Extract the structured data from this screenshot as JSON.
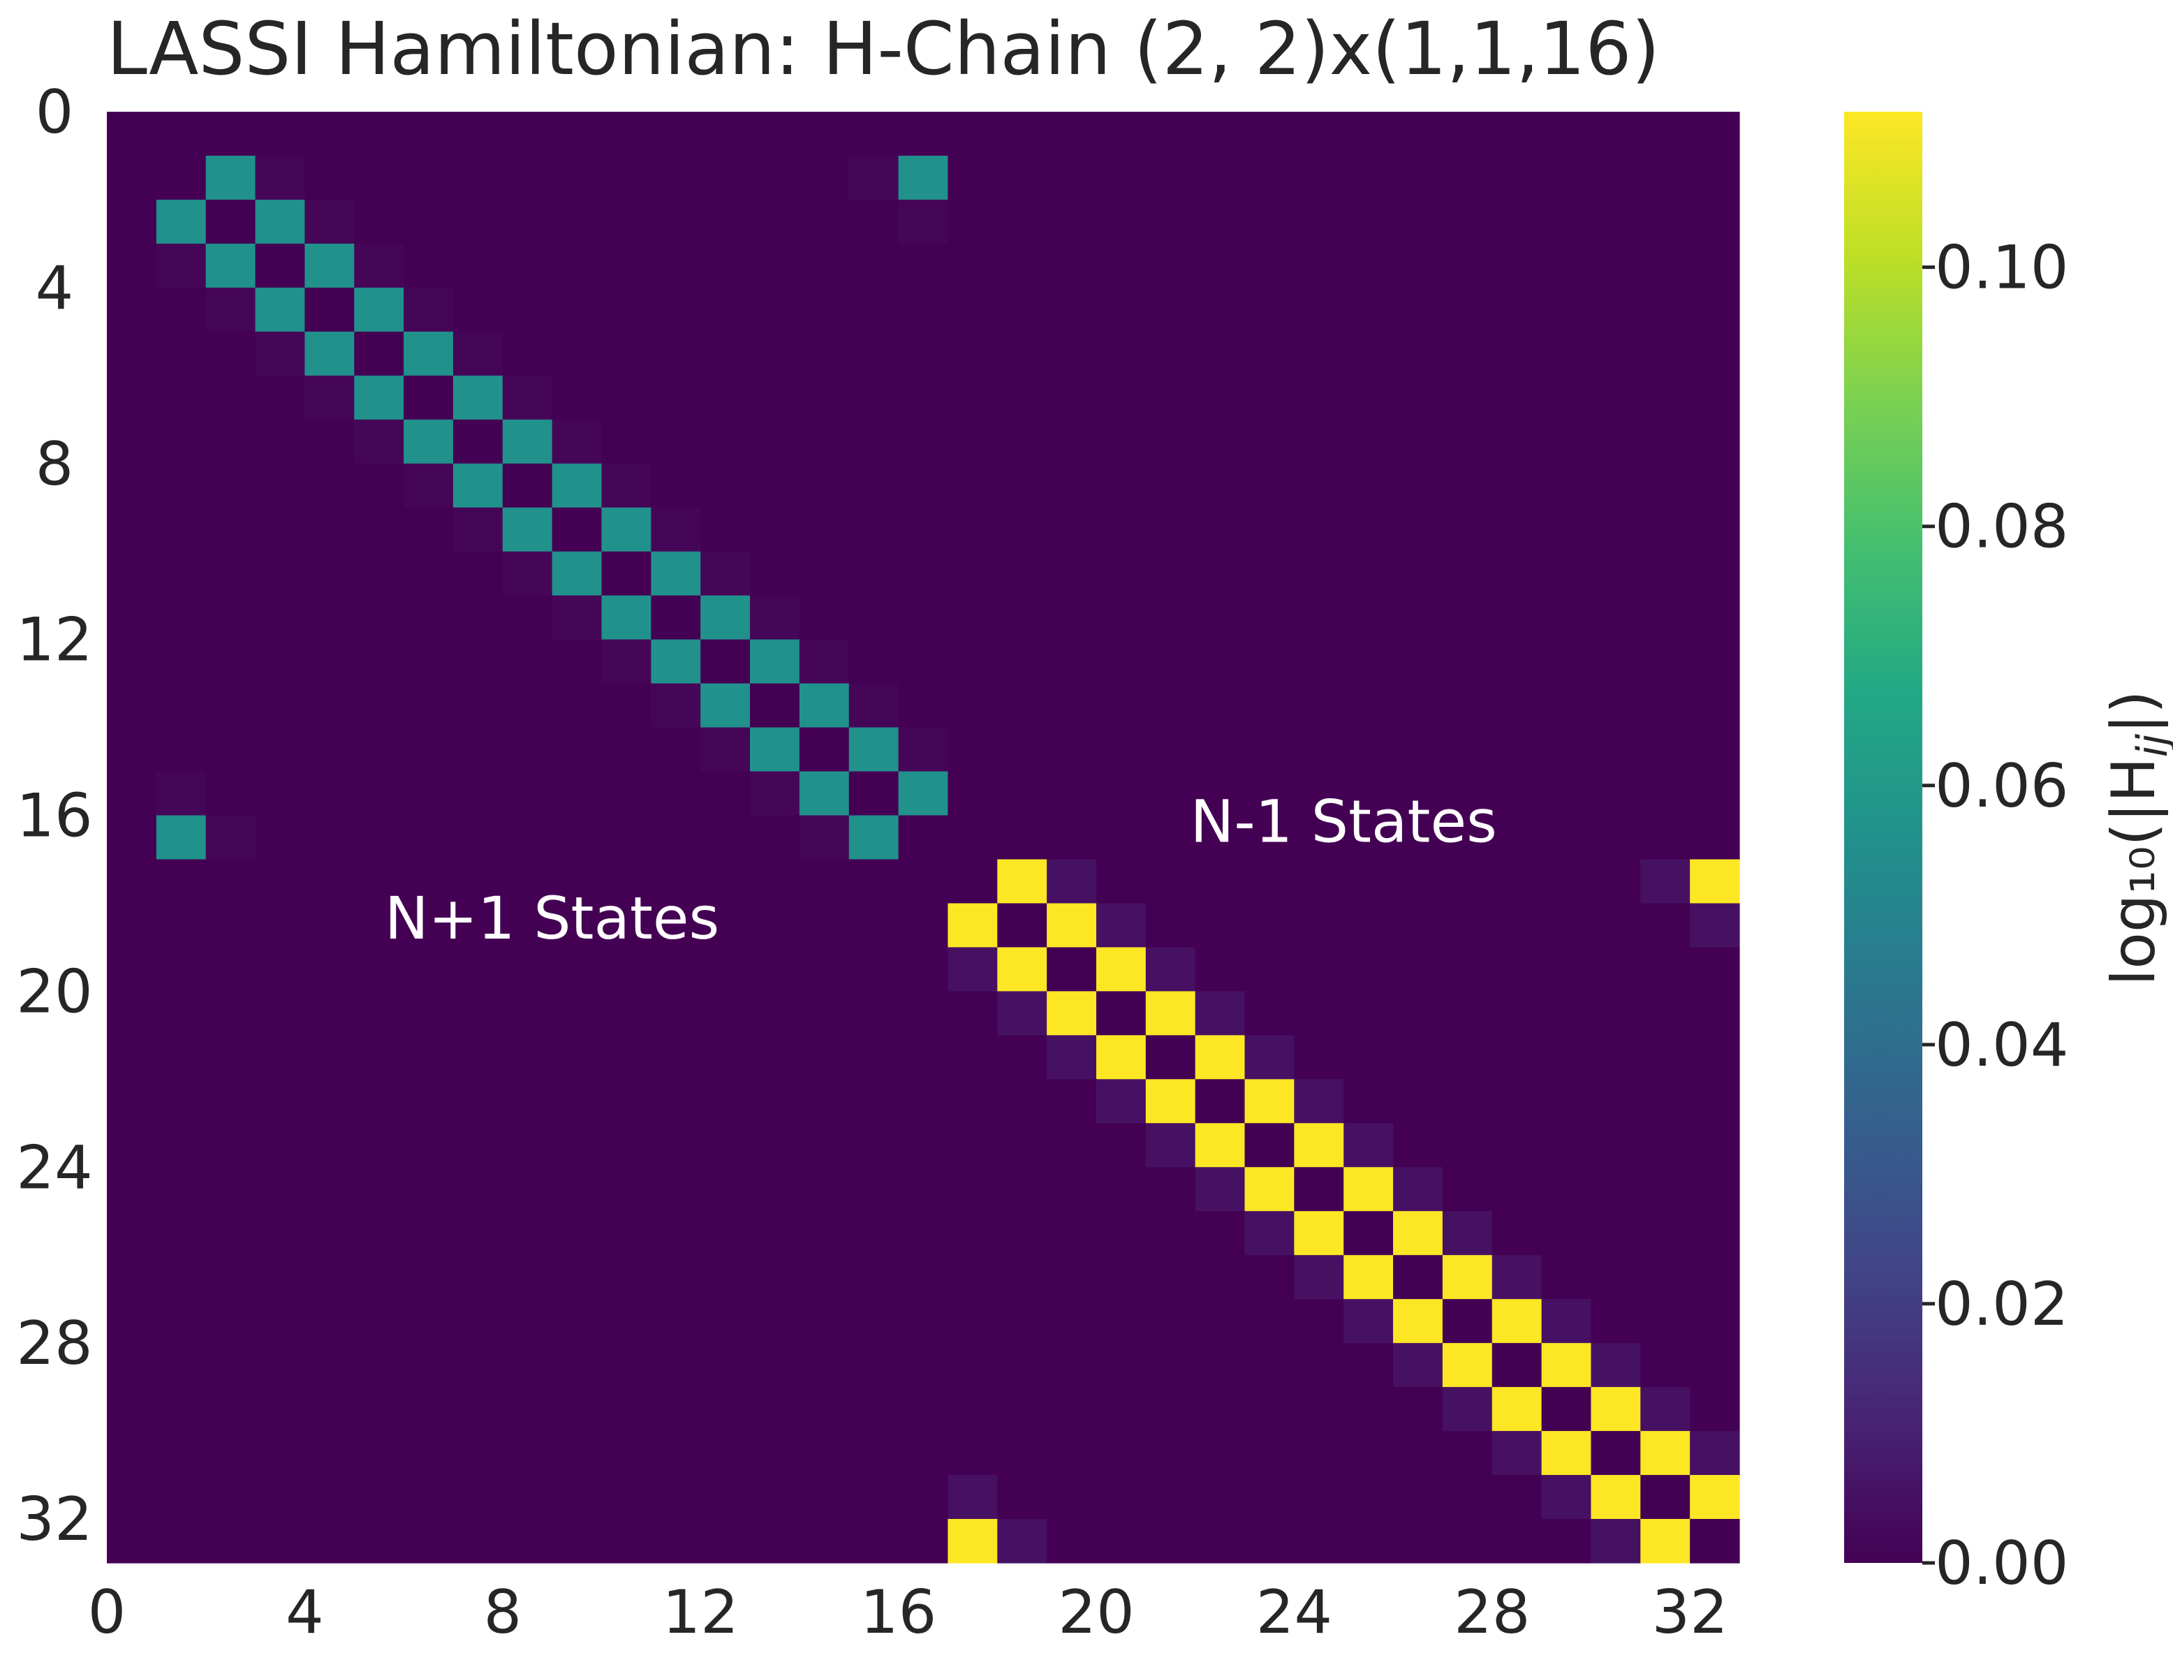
{
  "chart_data": {
    "type": "heatmap",
    "title": "LASSI Hamiltonian: H-Chain (2, 2)x(1,1,16)",
    "n": 33,
    "x_ticks": [
      0,
      4,
      8,
      12,
      16,
      20,
      24,
      28,
      32
    ],
    "y_ticks": [
      0,
      4,
      8,
      12,
      16,
      20,
      24,
      28,
      32
    ],
    "colorbar": {
      "label": "log₁₀(|H",
      "label_sub": "ij",
      "label_end": "|)",
      "min": 0.0,
      "max": 0.112,
      "ticks": [
        "0.00",
        "0.02",
        "0.04",
        "0.06",
        "0.08",
        "0.10"
      ],
      "tick_values": [
        0.0,
        0.02,
        0.04,
        0.06,
        0.08,
        0.1
      ]
    },
    "colormap": "viridis",
    "background_value": 0.0,
    "annotations": [
      {
        "text": "N+1 States",
        "x": 9.0,
        "y": 18.8
      },
      {
        "text": "N-1 States",
        "x": 25.0,
        "y": 16.6
      }
    ],
    "blocks": [
      {
        "name": "N+1 States",
        "start": 1,
        "end": 16,
        "value": 0.056,
        "periodic": true
      },
      {
        "name": "N-1 States",
        "start": 17,
        "end": 32,
        "value": 0.112,
        "periodic": true
      }
    ],
    "faint_cells": [
      [
        1,
        3,
        0.0015
      ],
      [
        1,
        15,
        0.0015
      ],
      [
        2,
        16,
        0.0015
      ],
      [
        3,
        1,
        0.0015
      ],
      [
        4,
        2,
        0.0015
      ],
      [
        5,
        3,
        0.0015
      ],
      [
        6,
        4,
        0.0015
      ],
      [
        7,
        5,
        0.0015
      ],
      [
        8,
        6,
        0.0015
      ],
      [
        9,
        7,
        0.0015
      ],
      [
        10,
        8,
        0.0015
      ],
      [
        11,
        9,
        0.0015
      ],
      [
        12,
        10,
        0.0015
      ],
      [
        13,
        11,
        0.0015
      ],
      [
        14,
        12,
        0.0015
      ],
      [
        15,
        1,
        0.0015
      ],
      [
        15,
        13,
        0.0015
      ],
      [
        16,
        2,
        0.0015
      ],
      [
        16,
        14,
        0.0015
      ],
      [
        2,
        4,
        0.0015
      ],
      [
        3,
        5,
        0.0015
      ],
      [
        4,
        6,
        0.0015
      ],
      [
        5,
        7,
        0.0015
      ],
      [
        6,
        8,
        0.0015
      ],
      [
        7,
        9,
        0.0015
      ],
      [
        8,
        10,
        0.0015
      ],
      [
        9,
        11,
        0.0015
      ],
      [
        10,
        12,
        0.0015
      ],
      [
        11,
        13,
        0.0015
      ],
      [
        12,
        14,
        0.0015
      ],
      [
        13,
        15,
        0.0015
      ],
      [
        14,
        16,
        0.0015
      ],
      [
        17,
        19,
        0.005
      ],
      [
        17,
        31,
        0.005
      ],
      [
        18,
        20,
        0.005
      ],
      [
        18,
        32,
        0.005
      ],
      [
        19,
        17,
        0.005
      ],
      [
        19,
        21,
        0.005
      ],
      [
        20,
        18,
        0.005
      ],
      [
        20,
        22,
        0.005
      ],
      [
        21,
        19,
        0.005
      ],
      [
        21,
        23,
        0.005
      ],
      [
        22,
        20,
        0.005
      ],
      [
        22,
        24,
        0.005
      ],
      [
        23,
        21,
        0.005
      ],
      [
        23,
        25,
        0.005
      ],
      [
        24,
        22,
        0.005
      ],
      [
        24,
        26,
        0.005
      ],
      [
        25,
        23,
        0.005
      ],
      [
        25,
        27,
        0.005
      ],
      [
        26,
        24,
        0.005
      ],
      [
        26,
        28,
        0.005
      ],
      [
        27,
        25,
        0.005
      ],
      [
        27,
        29,
        0.005
      ],
      [
        28,
        26,
        0.005
      ],
      [
        28,
        30,
        0.005
      ],
      [
        29,
        27,
        0.005
      ],
      [
        29,
        31,
        0.005
      ],
      [
        30,
        28,
        0.005
      ],
      [
        30,
        32,
        0.005
      ],
      [
        31,
        17,
        0.005
      ],
      [
        31,
        29,
        0.005
      ],
      [
        32,
        18,
        0.005
      ],
      [
        32,
        30,
        0.005
      ]
    ]
  }
}
